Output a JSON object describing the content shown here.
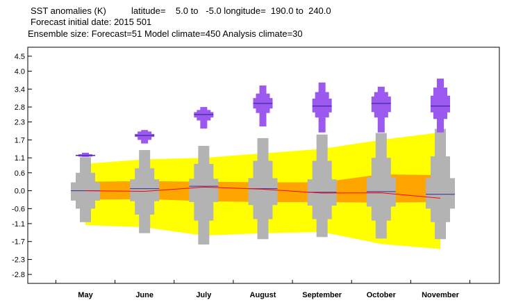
{
  "header": {
    "line1": "SST anomalies (K)          latitude=    5.0 to   -5.0 longitude=  190.0 to  240.0",
    "line2": "Forecast initial date: 2015 501",
    "line3": "Ensemble size: Forecast=51 Model climate=450 Analysis climate=30"
  },
  "chart_data": {
    "type": "box",
    "categories": [
      "May",
      "June",
      "July",
      "August",
      "September",
      "October",
      "November"
    ],
    "yticks": [
      "4.5",
      "4.0",
      "3.4",
      "2.8",
      "2.3",
      "1.7",
      "1.1",
      "0.6",
      "0.0",
      "-0.6",
      "-1.1",
      "-1.7",
      "-2.3",
      "-2.8"
    ],
    "ylim": [
      -3.1,
      4.8
    ],
    "colors": {
      "forecast": "#9b59f0",
      "forecast_median": "#2a1a8f",
      "climate": "#b3b3b3",
      "climate_median": "#3a2a9a",
      "band_outer": "#ffff00",
      "band_inner": "#ffa500",
      "analysis_line": "#ff0000"
    },
    "forecast": [
      {
        "min": 1.13,
        "p10": 1.14,
        "p25": 1.16,
        "median": 1.18,
        "p75": 1.2,
        "p90": 1.22,
        "max": 1.27
      },
      {
        "min": 1.58,
        "p10": 1.7,
        "p25": 1.8,
        "median": 1.85,
        "p75": 1.9,
        "p90": 1.98,
        "max": 2.03
      },
      {
        "min": 2.08,
        "p10": 2.35,
        "p25": 2.45,
        "median": 2.55,
        "p75": 2.63,
        "p90": 2.7,
        "max": 2.8
      },
      {
        "min": 2.15,
        "p10": 2.6,
        "p25": 2.75,
        "median": 2.92,
        "p75": 3.1,
        "p90": 3.25,
        "max": 3.52
      },
      {
        "min": 1.95,
        "p10": 2.45,
        "p25": 2.62,
        "median": 2.83,
        "p75": 3.08,
        "p90": 3.3,
        "max": 3.62
      },
      {
        "min": 1.95,
        "p10": 2.45,
        "p25": 2.63,
        "median": 2.92,
        "p75": 3.15,
        "p90": 3.3,
        "max": 3.48
      },
      {
        "min": 1.95,
        "p10": 2.4,
        "p25": 2.62,
        "median": 2.83,
        "p75": 3.18,
        "p90": 3.45,
        "max": 3.75
      }
    ],
    "climate": [
      {
        "min": -1.05,
        "p10": -0.6,
        "p25": -0.33,
        "median": 0.0,
        "p75": 0.28,
        "p90": 0.6,
        "max": 1.12
      },
      {
        "min": -1.42,
        "p10": -0.8,
        "p25": -0.35,
        "median": 0.07,
        "p75": 0.38,
        "p90": 0.75,
        "max": 1.36
      },
      {
        "min": -1.8,
        "p10": -1.0,
        "p25": -0.38,
        "median": 0.15,
        "p75": 0.4,
        "p90": 0.9,
        "max": 1.5
      },
      {
        "min": -1.62,
        "p10": -0.95,
        "p25": -0.48,
        "median": 0.07,
        "p75": 0.42,
        "p90": 1.0,
        "max": 1.76
      },
      {
        "min": -1.55,
        "p10": -0.95,
        "p25": -0.5,
        "median": -0.05,
        "p75": 0.38,
        "p90": 1.0,
        "max": 1.88
      },
      {
        "min": -1.6,
        "p10": -1.0,
        "p25": -0.53,
        "median": -0.03,
        "p75": 0.45,
        "p90": 1.1,
        "max": 1.93
      },
      {
        "min": -1.62,
        "p10": -1.05,
        "p25": -0.6,
        "median": -0.12,
        "p75": 0.42,
        "p90": 1.15,
        "max": 2.07
      }
    ],
    "band_outer": {
      "upper": [
        0.9,
        1.05,
        1.1,
        1.25,
        1.4,
        1.7,
        1.95
      ],
      "lower": [
        -1.15,
        -1.22,
        -1.5,
        -1.42,
        -1.38,
        -1.78,
        -1.95
      ]
    },
    "band_inner": {
      "upper": [
        0.3,
        0.32,
        0.3,
        0.28,
        0.28,
        0.55,
        0.52
      ],
      "lower": [
        -0.3,
        -0.28,
        -0.35,
        -0.38,
        -0.38,
        -0.4,
        -0.38
      ]
    },
    "analysis_line": [
      0.0,
      -0.02,
      0.12,
      0.05,
      -0.08,
      -0.07,
      -0.25
    ]
  }
}
